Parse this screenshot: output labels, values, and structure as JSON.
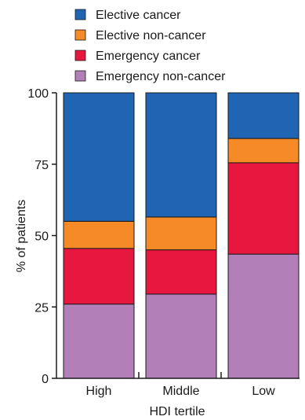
{
  "chart_data": {
    "type": "bar",
    "stacked": true,
    "categories": [
      "High",
      "Middle",
      "Low"
    ],
    "series": [
      {
        "name": "Emergency non-cancer",
        "color": "#b27fb8",
        "values": [
          26,
          29.5,
          43.5
        ]
      },
      {
        "name": "Emergency cancer",
        "color": "#e8173f",
        "values": [
          19.5,
          15.5,
          32
        ]
      },
      {
        "name": "Elective non-cancer",
        "color": "#f58a26",
        "values": [
          9.5,
          11.5,
          8.5
        ]
      },
      {
        "name": "Elective cancer",
        "color": "#1f65b4",
        "values": [
          45,
          43.5,
          16
        ]
      }
    ],
    "legend_order": [
      "Elective cancer",
      "Elective non-cancer",
      "Emergency cancer",
      "Emergency non-cancer"
    ],
    "title": "",
    "xlabel": "HDI tertile",
    "ylabel": "% of patients",
    "ylim": [
      0,
      100
    ],
    "yticks": [
      0,
      25,
      50,
      75,
      100
    ],
    "legend_position": "top",
    "grid": false
  }
}
